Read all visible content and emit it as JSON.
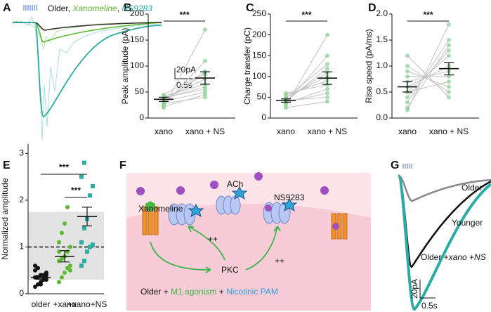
{
  "panel_labels": [
    "A",
    "B",
    "C",
    "D",
    "E",
    "F",
    "G"
  ],
  "trace_a": {
    "legend": [
      "Older, ",
      "Xanomeline",
      ", ",
      "NS9283"
    ],
    "scale": [
      "20pA",
      "0.5s"
    ]
  },
  "trace_g": {
    "labels": [
      "Older",
      "Younger",
      "Older +",
      "xano +NS"
    ],
    "scale": [
      "20pA",
      "0.5s"
    ]
  },
  "diagram": {
    "ach": "ACh",
    "agonist": "Xanomeline",
    "pam": "NS9283",
    "plus": [
      "++",
      "++"
    ],
    "kinase": "PKC",
    "caption": [
      "Older + ",
      "M1 agonism",
      " + ",
      "Nicotinic PAM"
    ]
  },
  "chart_data": [
    {
      "type": "paired",
      "ylabel": "Peak amplitude (pA)",
      "categories": [
        "xano",
        "xano + NS"
      ],
      "values": [
        [
          20,
          25,
          30,
          35,
          38,
          40,
          32,
          45,
          28,
          36,
          42,
          22
        ],
        [
          170,
          110,
          90,
          85,
          60,
          55,
          50,
          88,
          40,
          75,
          65,
          45
        ]
      ],
      "means": [
        36,
        77
      ],
      "sems": [
        4,
        12
      ],
      "significance": "***",
      "color": "#8fd19a",
      "ylim": [
        0,
        200
      ],
      "yticks": [
        0,
        50,
        100,
        150,
        200
      ]
    },
    {
      "type": "paired",
      "ylabel": "Charge transfer (pC)",
      "categories": [
        "xano",
        "xano + NS"
      ],
      "values": [
        [
          30,
          35,
          40,
          45,
          50,
          55,
          60,
          38,
          42,
          25,
          48,
          36
        ],
        [
          200,
          150,
          120,
          110,
          100,
          90,
          80,
          60,
          50,
          40,
          130,
          70
        ]
      ],
      "means": [
        42,
        96
      ],
      "sems": [
        4,
        15
      ],
      "significance": "***",
      "color": "#8fd19a",
      "ylim": [
        0,
        250
      ],
      "yticks": [
        0,
        50,
        100,
        150,
        200,
        250
      ]
    },
    {
      "type": "paired",
      "ylabel": "Rise speed (pA/ms)",
      "categories": [
        "xano",
        "xano + NS"
      ],
      "values": [
        [
          0.15,
          0.3,
          0.4,
          0.5,
          0.6,
          0.7,
          0.8,
          0.9,
          1.0,
          1.2,
          0.2,
          0.5
        ],
        [
          1.8,
          1.5,
          1.3,
          1.2,
          1.0,
          0.9,
          0.8,
          0.6,
          0.5,
          0.4,
          1.4,
          0.7
        ]
      ],
      "means": [
        0.6,
        0.95
      ],
      "sems": [
        0.1,
        0.12
      ],
      "significance": "***",
      "color": "#8fd19a",
      "ylim": [
        0,
        2
      ],
      "yticks": [
        {
          "value": 0,
          "label": "0.0"
        },
        0.5,
        {
          "value": 1,
          "label": "1.0"
        },
        1.5,
        {
          "value": 2,
          "label": "2.0"
        }
      ]
    },
    {
      "type": "dot",
      "ylabel": "Normalized amplitude",
      "categories": [
        "older",
        "+xano",
        "+xano+NS"
      ],
      "values": [
        [
          0.15,
          0.2,
          0.25,
          0.3,
          0.3,
          0.35,
          0.35,
          0.4,
          0.4,
          0.45,
          0.5,
          0.55,
          0.2,
          0.3,
          0.4,
          0.6
        ],
        [
          0.25,
          0.35,
          0.45,
          0.55,
          0.6,
          0.7,
          0.75,
          0.8,
          0.9,
          1.0,
          1.1,
          1.3,
          1.5,
          1.85,
          0.5,
          0.9
        ],
        [
          0.6,
          0.7,
          0.9,
          1.0,
          1.05,
          1.1,
          1.4,
          1.6,
          2.1,
          2.3,
          2.5,
          2.8
        ]
      ],
      "colors": [
        "#111111",
        "#5cb82e",
        "#2aada4"
      ],
      "means": [
        0.35,
        0.8,
        1.65
      ],
      "sems": [
        0.04,
        0.12,
        0.2
      ],
      "reference_line": 1,
      "reference_band": [
        0.3,
        1.75
      ],
      "comparisons": [
        {
          "groups": [
            "older",
            "+xano+NS"
          ],
          "label": "***"
        },
        {
          "groups": [
            "+xano",
            "+xano+NS"
          ],
          "label": "***"
        }
      ],
      "ylim": [
        0,
        3.2
      ],
      "yticks": [
        0,
        1,
        2,
        3
      ]
    }
  ]
}
